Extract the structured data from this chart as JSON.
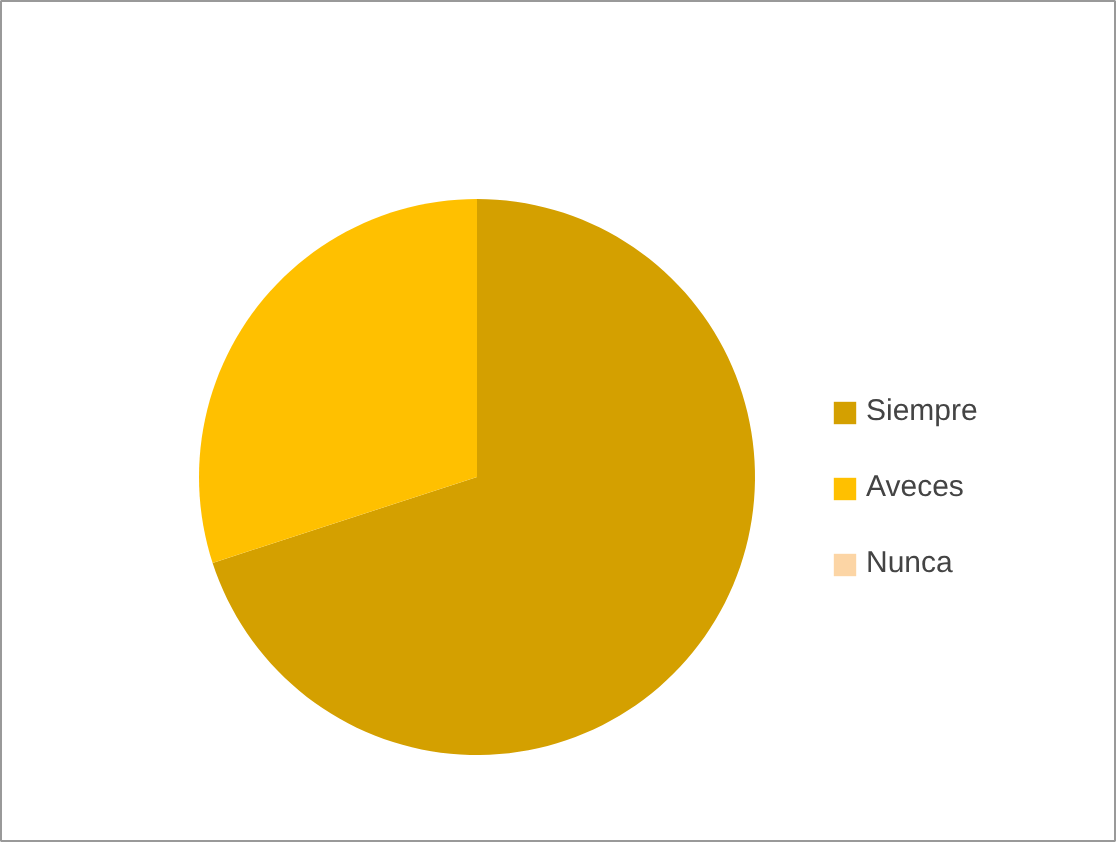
{
  "chart_data": {
    "type": "pie",
    "categories": [
      "Siempre",
      "Aveces",
      "Nunca"
    ],
    "values": [
      70,
      30,
      0
    ],
    "colors": [
      "#d4a000",
      "#ffc000",
      "#fcd5a5"
    ],
    "legend": "right"
  }
}
